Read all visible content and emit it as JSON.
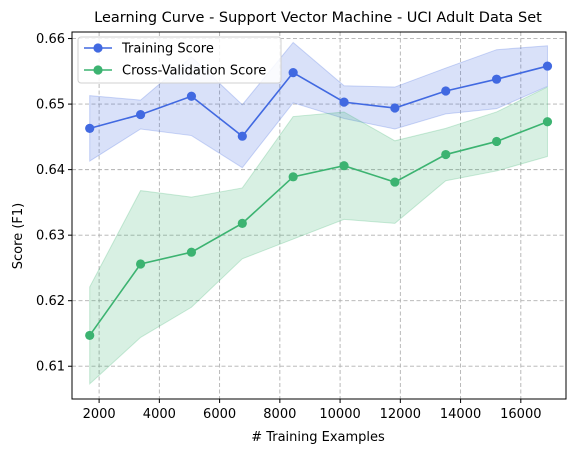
{
  "chart_data": {
    "type": "line",
    "title": "Learning Curve - Support Vector Machine - UCI Adult Data Set",
    "xlabel": "# Training Examples",
    "ylabel": "Score (F1)",
    "xlim": [
      1100,
      17500
    ],
    "ylim": [
      0.605,
      0.661
    ],
    "xticks": [
      2000,
      4000,
      6000,
      8000,
      10000,
      12000,
      14000,
      16000
    ],
    "yticks": [
      0.61,
      0.62,
      0.63,
      0.64,
      0.65,
      0.66
    ],
    "ytick_labels": [
      "0.61",
      "0.62",
      "0.63",
      "0.64",
      "0.65",
      "0.66"
    ],
    "grid": true,
    "legend_position": "upper-left",
    "x": [
      1688,
      3377,
      5065,
      6754,
      8442,
      10131,
      11819,
      13508,
      15196,
      16885
    ],
    "series": [
      {
        "name": "Training Score",
        "color": "#4169e1",
        "band_color": "#4169e1",
        "values": [
          0.6463,
          0.6484,
          0.6512,
          0.6451,
          0.6548,
          0.6503,
          0.6494,
          0.652,
          0.6538,
          0.6558
        ],
        "lower": [
          0.6413,
          0.6462,
          0.6452,
          0.6403,
          0.6502,
          0.6478,
          0.6462,
          0.6485,
          0.6493,
          0.6527
        ],
        "upper": [
          0.6513,
          0.6506,
          0.6572,
          0.6499,
          0.6594,
          0.6528,
          0.6526,
          0.6555,
          0.6583,
          0.6589
        ]
      },
      {
        "name": "Cross-Validation Score",
        "color": "#3cb371",
        "band_color": "#3cb371",
        "values": [
          0.6147,
          0.6256,
          0.6274,
          0.6318,
          0.6389,
          0.6406,
          0.6381,
          0.6423,
          0.6443,
          0.6473
        ],
        "lower": [
          0.6073,
          0.6144,
          0.619,
          0.6264,
          0.6294,
          0.6324,
          0.6318,
          0.6383,
          0.6398,
          0.642
        ],
        "upper": [
          0.6221,
          0.6368,
          0.6358,
          0.6372,
          0.6481,
          0.6488,
          0.6444,
          0.6463,
          0.6488,
          0.6526
        ]
      }
    ]
  }
}
